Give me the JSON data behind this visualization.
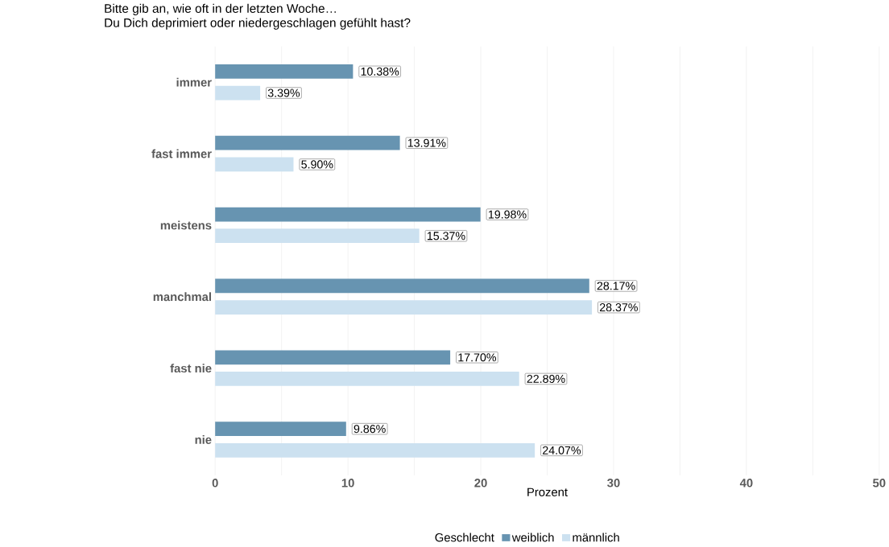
{
  "chart_data": {
    "type": "bar",
    "orientation": "horizontal",
    "title": "Bitte gib an, wie oft in der letzten Woche…",
    "subtitle": "Du Dich deprimiert oder niedergeschlagen gefühlt hast?",
    "xlabel": "Prozent",
    "legend_title": "Geschlecht",
    "legend": "bottom",
    "grid": "x",
    "categories": [
      "immer",
      "fast immer",
      "meistens",
      "manchmal",
      "fast nie",
      "nie"
    ],
    "xlim": [
      0,
      50
    ],
    "xticks": [
      0,
      {
        "value": 5,
        "label": null
      },
      10,
      {
        "value": 15,
        "label": null
      },
      20,
      {
        "value": 25,
        "label": null
      },
      30,
      {
        "value": 35,
        "label": null
      },
      40,
      {
        "value": 45,
        "label": null
      },
      50
    ],
    "series": [
      {
        "name": "weiblich",
        "color": "#6794b1",
        "values": [
          10.38,
          13.91,
          19.98,
          28.17,
          17.7,
          9.86
        ],
        "value_labels": [
          "10.38%",
          "13.91%",
          "19.98%",
          "28.17%",
          "17.70%",
          "9.86%"
        ]
      },
      {
        "name": "männlich",
        "color": "#cce1f0",
        "values": [
          3.39,
          5.9,
          15.37,
          28.37,
          22.89,
          24.07
        ],
        "value_labels": [
          "3.39%",
          "5.90%",
          "15.37%",
          "28.37%",
          "22.89%",
          "24.07%"
        ]
      }
    ]
  }
}
